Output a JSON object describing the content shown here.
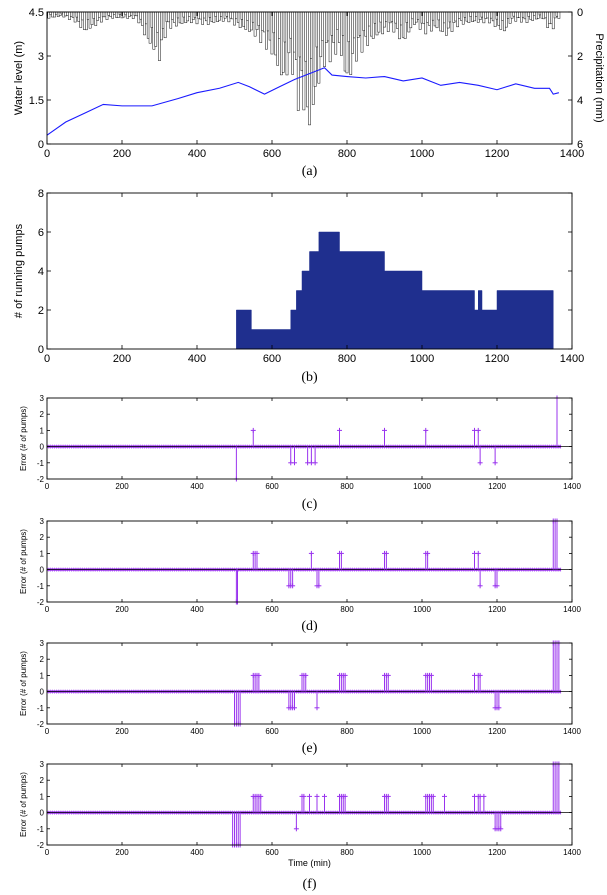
{
  "chart_data": [
    {
      "id": "a",
      "type": "line+bar",
      "caption": "(a)",
      "xlabel": "",
      "ylabel": "Water level (m)",
      "y2label": "Precipitation (mm)",
      "xlim": [
        0,
        1400
      ],
      "ylim": [
        0,
        4.5
      ],
      "y2lim": [
        0,
        6
      ],
      "y2_inverted": true,
      "xticks": [
        0,
        200,
        400,
        600,
        800,
        1000,
        1200,
        1400
      ],
      "yticks": [
        0,
        1.5,
        3,
        4.5
      ],
      "y2ticks": [
        0,
        2,
        4,
        6
      ],
      "line_color": "#1a1aff",
      "water_level": {
        "x": [
          0,
          50,
          100,
          150,
          200,
          280,
          350,
          400,
          460,
          510,
          540,
          580,
          620,
          660,
          700,
          740,
          760,
          800,
          850,
          900,
          950,
          1000,
          1050,
          1100,
          1150,
          1200,
          1250,
          1300,
          1340,
          1350,
          1365
        ],
        "y": [
          0.3,
          0.75,
          1.05,
          1.35,
          1.3,
          1.3,
          1.55,
          1.75,
          1.9,
          2.1,
          1.95,
          1.7,
          1.95,
          2.2,
          2.4,
          2.6,
          2.35,
          2.3,
          2.25,
          2.3,
          2.15,
          2.25,
          2.0,
          2.1,
          2.0,
          1.85,
          2.05,
          1.9,
          1.9,
          1.7,
          1.75
        ]
      },
      "precipitation": {
        "x": [
          10,
          40,
          80,
          100,
          150,
          170,
          240,
          270,
          300,
          320,
          380,
          430,
          480,
          520,
          560,
          600,
          630,
          650,
          660,
          670,
          680,
          690,
          700,
          710,
          720,
          730,
          740,
          760,
          780,
          800,
          830,
          860,
          880,
          920,
          950,
          980,
          1010,
          1040,
          1060,
          1100,
          1140,
          1180,
          1220,
          1240,
          1280,
          1320,
          1345,
          1360
        ],
        "y": [
          0.3,
          0.2,
          0.5,
          1.0,
          0.4,
          0.3,
          0.3,
          1.5,
          2.3,
          0.8,
          0.5,
          0.6,
          0.4,
          0.8,
          1.2,
          2.0,
          3.5,
          2.5,
          3.2,
          4.5,
          4.0,
          5.3,
          5.8,
          4.8,
          3.8,
          3.0,
          2.5,
          2.2,
          1.8,
          3.5,
          2.0,
          1.5,
          1.2,
          0.8,
          1.5,
          0.6,
          1.0,
          0.8,
          1.2,
          0.6,
          0.5,
          0.5,
          1.0,
          0.4,
          0.5,
          0.3,
          1.0,
          0.3
        ]
      }
    },
    {
      "id": "b",
      "type": "area",
      "caption": "(b)",
      "xlabel": "",
      "ylabel": "# of running pumps",
      "xlim": [
        0,
        1400
      ],
      "ylim": [
        0,
        8
      ],
      "xticks": [
        0,
        200,
        400,
        600,
        800,
        1000,
        1200,
        1400
      ],
      "yticks": [
        0,
        2,
        4,
        6,
        8
      ],
      "fill_color": "#1f2f8e",
      "steps": {
        "x": [
          505,
          545,
          650,
          665,
          680,
          700,
          715,
          725,
          780,
          900,
          1000,
          1140,
          1150,
          1160,
          1200,
          1350
        ],
        "y": [
          2,
          1,
          2,
          3,
          4,
          5,
          5,
          6,
          5,
          4,
          3,
          2,
          3,
          2,
          3,
          0
        ]
      }
    },
    {
      "id": "c",
      "type": "stem",
      "caption": "(c)",
      "xlabel": "",
      "ylabel": "Error (# of pumps)",
      "xlim": [
        0,
        1400
      ],
      "ylim": [
        -2,
        3
      ],
      "xticks": [
        0,
        200,
        400,
        600,
        800,
        1000,
        1200,
        1400
      ],
      "yticks": [
        -2,
        -1,
        0,
        1,
        2,
        3
      ],
      "stem_color": "#9933ee",
      "errors": {
        "x": [
          505,
          550,
          650,
          660,
          695,
          705,
          715,
          780,
          900,
          1010,
          1140,
          1150,
          1155,
          1195,
          1360
        ],
        "y": [
          -2,
          1,
          -1,
          -1,
          -1,
          -1,
          -1,
          1,
          1,
          1,
          1,
          1,
          -1,
          -1,
          3
        ]
      }
    },
    {
      "id": "d",
      "type": "stem",
      "caption": "(d)",
      "xlabel": "",
      "ylabel": "Error (# of pumps)",
      "xlim": [
        0,
        1400
      ],
      "ylim": [
        -2,
        3
      ],
      "xticks": [
        0,
        200,
        400,
        600,
        800,
        1000,
        1200,
        1400
      ],
      "yticks": [
        -2,
        -1,
        0,
        1,
        2,
        3
      ],
      "stem_color": "#9933ee",
      "errors": {
        "x": [
          505,
          508,
          550,
          555,
          560,
          645,
          650,
          655,
          705,
          720,
          725,
          780,
          785,
          900,
          905,
          1010,
          1015,
          1140,
          1150,
          1155,
          1195,
          1200,
          1350,
          1355,
          1360
        ],
        "y": [
          -2,
          -2,
          1,
          1,
          1,
          -1,
          -1,
          -1,
          1,
          -1,
          -1,
          1,
          1,
          1,
          1,
          1,
          1,
          1,
          1,
          -1,
          -1,
          -1,
          3,
          3,
          3
        ]
      }
    },
    {
      "id": "e",
      "type": "stem",
      "caption": "(e)",
      "xlabel": "",
      "ylabel": "Error (# of pumps)",
      "xlim": [
        0,
        1400
      ],
      "ylim": [
        -2,
        3
      ],
      "xticks": [
        0,
        200,
        400,
        600,
        800,
        1000,
        1200,
        1400
      ],
      "yticks": [
        -2,
        -1,
        0,
        1,
        2,
        3
      ],
      "stem_color": "#9933ee",
      "errors": {
        "x": [
          500,
          505,
          510,
          515,
          550,
          555,
          560,
          565,
          645,
          650,
          655,
          660,
          680,
          685,
          690,
          720,
          780,
          785,
          790,
          795,
          900,
          905,
          910,
          1010,
          1015,
          1020,
          1025,
          1140,
          1150,
          1155,
          1195,
          1200,
          1205,
          1350,
          1355,
          1360,
          1365
        ],
        "y": [
          -2,
          -2,
          -2,
          -2,
          1,
          1,
          1,
          1,
          -1,
          -1,
          -1,
          -1,
          1,
          1,
          1,
          -1,
          1,
          1,
          1,
          1,
          1,
          1,
          1,
          1,
          1,
          1,
          1,
          1,
          1,
          1,
          -1,
          -1,
          -1,
          3,
          3,
          3,
          3
        ]
      }
    },
    {
      "id": "f",
      "type": "stem",
      "caption": "(f)",
      "xlabel": "Time (min)",
      "ylabel": "Error (# of pumps)",
      "xlim": [
        0,
        1400
      ],
      "ylim": [
        -2,
        3
      ],
      "xticks": [
        0,
        200,
        400,
        600,
        800,
        1000,
        1200,
        1400
      ],
      "yticks": [
        -2,
        -1,
        0,
        1,
        2,
        3
      ],
      "stem_color": "#9933ee",
      "errors": {
        "x": [
          495,
          500,
          505,
          510,
          515,
          550,
          555,
          560,
          565,
          570,
          665,
          680,
          685,
          700,
          720,
          740,
          780,
          785,
          790,
          795,
          900,
          905,
          910,
          1010,
          1015,
          1020,
          1025,
          1030,
          1060,
          1140,
          1150,
          1155,
          1165,
          1195,
          1200,
          1205,
          1210,
          1350,
          1355,
          1360,
          1365
        ],
        "y": [
          -2,
          -2,
          -2,
          -2,
          -2,
          1,
          1,
          1,
          1,
          1,
          -1,
          1,
          1,
          1,
          1,
          1,
          1,
          1,
          1,
          1,
          1,
          1,
          1,
          1,
          1,
          1,
          1,
          1,
          1,
          1,
          1,
          1,
          1,
          -1,
          -1,
          -1,
          -1,
          3,
          3,
          3,
          3
        ]
      }
    }
  ]
}
